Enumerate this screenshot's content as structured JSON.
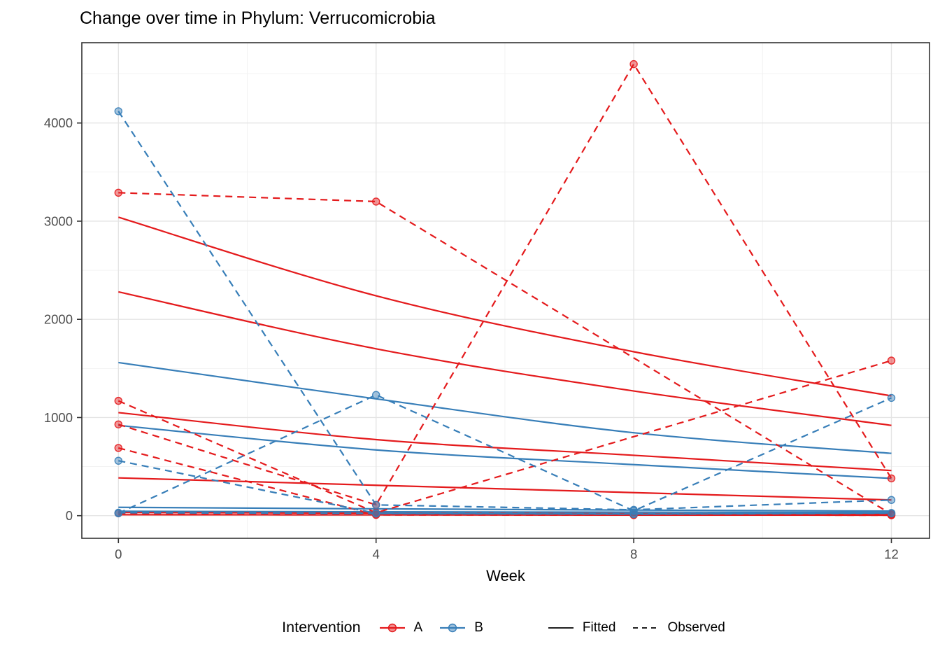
{
  "chart_data": {
    "type": "line",
    "title": "Change over time in Phylum: Verrucomicrobia",
    "xlabel": "Week",
    "x_ticks": [
      0,
      4,
      8,
      12
    ],
    "x_minor": [
      2,
      6,
      10
    ],
    "y_ticks": [
      0,
      1000,
      2000,
      3000,
      4000
    ],
    "y_minor": [
      500,
      1500,
      2500,
      3500,
      4500
    ],
    "xlim": [
      0,
      12
    ],
    "ylim": [
      0,
      4600
    ],
    "grid": "on",
    "legend_position": "bottom",
    "legend": {
      "title": "Intervention",
      "groups": [
        {
          "label": "A",
          "color": "#e41a1c"
        },
        {
          "label": "B",
          "color": "#377eb8"
        }
      ],
      "linetypes": [
        {
          "label": "Fitted",
          "dash": "solid"
        },
        {
          "label": "Observed",
          "dash": "dashed"
        }
      ]
    },
    "colors": {
      "grid_major": "#e4e4e4",
      "grid_minor": "#f1f1f1",
      "panel_border": "#333333",
      "tick_text": "#4d4d4d",
      "axis_tick": "#333333"
    },
    "series": [
      {
        "intervention": "A",
        "kind": "fitted",
        "weeks": [
          0,
          4,
          8,
          12
        ],
        "values": [
          3040,
          2240,
          1670,
          1220
        ]
      },
      {
        "intervention": "A",
        "kind": "fitted",
        "weeks": [
          0,
          4,
          8,
          12
        ],
        "values": [
          2280,
          1700,
          1270,
          920
        ]
      },
      {
        "intervention": "A",
        "kind": "fitted",
        "weeks": [
          0,
          4,
          8,
          12
        ],
        "values": [
          1050,
          775,
          615,
          460
        ]
      },
      {
        "intervention": "A",
        "kind": "fitted",
        "weeks": [
          0,
          4,
          8,
          12
        ],
        "values": [
          385,
          310,
          235,
          160
        ]
      },
      {
        "intervention": "A",
        "kind": "fitted",
        "weeks": [
          0,
          4,
          8,
          12
        ],
        "values": [
          32,
          26,
          21,
          16
        ]
      },
      {
        "intervention": "A",
        "kind": "fitted",
        "weeks": [
          0,
          4,
          8,
          12
        ],
        "values": [
          10,
          8,
          6,
          5
        ]
      },
      {
        "intervention": "B",
        "kind": "fitted",
        "weeks": [
          0,
          4,
          8,
          12
        ],
        "values": [
          1560,
          1190,
          845,
          635
        ]
      },
      {
        "intervention": "B",
        "kind": "fitted",
        "weeks": [
          0,
          4,
          8,
          12
        ],
        "values": [
          920,
          670,
          520,
          380
        ]
      },
      {
        "intervention": "B",
        "kind": "fitted",
        "weeks": [
          0,
          4,
          8,
          12
        ],
        "values": [
          85,
          70,
          57,
          47
        ]
      },
      {
        "intervention": "B",
        "kind": "fitted",
        "weeks": [
          0,
          4,
          8,
          12
        ],
        "values": [
          45,
          40,
          36,
          32
        ]
      },
      {
        "intervention": "A",
        "kind": "observed",
        "weeks": [
          0,
          4,
          12
        ],
        "values": [
          3290,
          3200,
          15
        ]
      },
      {
        "intervention": "A",
        "kind": "observed",
        "weeks": [
          0,
          4,
          8,
          12
        ],
        "values": [
          930,
          110,
          4600,
          380
        ]
      },
      {
        "intervention": "A",
        "kind": "observed",
        "weeks": [
          0,
          4,
          12
        ],
        "values": [
          1170,
          30,
          1580
        ]
      },
      {
        "intervention": "A",
        "kind": "observed",
        "weeks": [
          0,
          4,
          8,
          12
        ],
        "values": [
          690,
          8,
          6,
          5
        ]
      },
      {
        "intervention": "A",
        "kind": "observed",
        "weeks": [
          0,
          4,
          8,
          12
        ],
        "values": [
          25,
          12,
          8,
          6
        ]
      },
      {
        "intervention": "B",
        "kind": "observed",
        "weeks": [
          0,
          4,
          8,
          12
        ],
        "values": [
          4120,
          110,
          60,
          160
        ]
      },
      {
        "intervention": "B",
        "kind": "observed",
        "weeks": [
          0,
          4,
          8,
          12
        ],
        "values": [
          560,
          25,
          18,
          28
        ]
      },
      {
        "intervention": "B",
        "kind": "observed",
        "weeks": [
          0,
          4,
          8,
          12
        ],
        "values": [
          25,
          1230,
          50,
          1200
        ]
      },
      {
        "intervention": "B",
        "kind": "observed",
        "weeks": [
          0,
          4,
          8,
          12
        ],
        "values": [
          30,
          22,
          15,
          25
        ]
      }
    ]
  }
}
